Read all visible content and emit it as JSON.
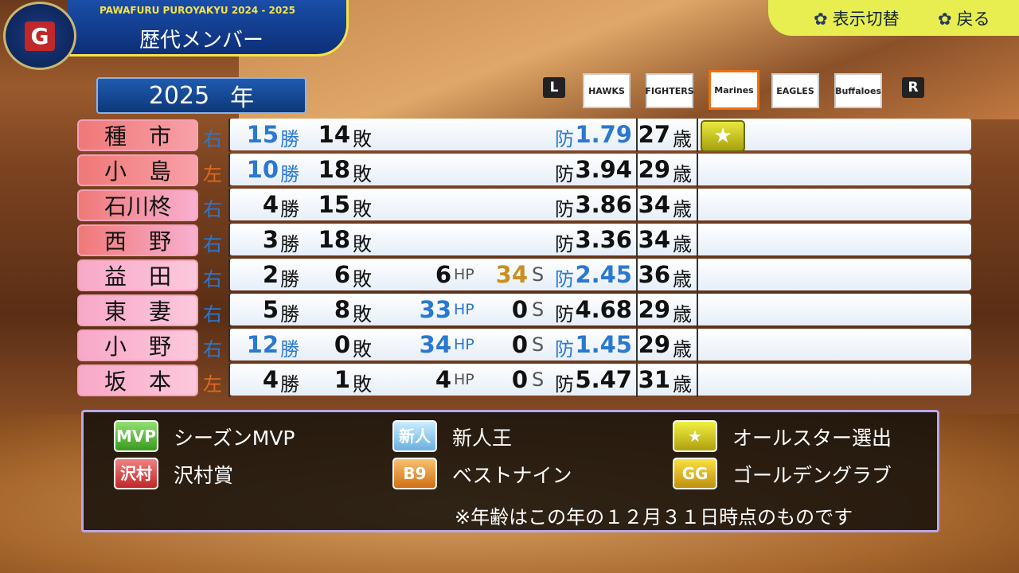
{
  "header": {
    "subtitle": "PAWAFURU PUROYAKYU 2024 - 2025",
    "title": "歴代メンバー",
    "logo": "G"
  },
  "top_buttons": [
    "表示切替",
    "戻る"
  ],
  "year": {
    "value": "2025",
    "unit": "年"
  },
  "team_nav": {
    "left": "L",
    "right": "R",
    "selected": 2,
    "teams": [
      "HAWKS",
      "FIGHTERS",
      "Marines",
      "EAGLES",
      "Buffaloes"
    ]
  },
  "units": {
    "wins": "勝",
    "losses": "敗",
    "hp": "HP",
    "saves": "S",
    "era": "防",
    "age": "歳"
  },
  "rows": [
    {
      "name": "種　市",
      "hand": "右",
      "wins": "15",
      "losses": "14",
      "hp": null,
      "saves": null,
      "era": "1.79",
      "age": "27",
      "all_star": true,
      "blue": [
        "wins",
        "era"
      ]
    },
    {
      "name": "小　島",
      "hand": "左",
      "wins": "10",
      "losses": "18",
      "hp": null,
      "saves": null,
      "era": "3.94",
      "age": "29",
      "all_star": false,
      "blue": [
        "wins"
      ]
    },
    {
      "name": "石川柊",
      "hand": "右",
      "wins": "4",
      "losses": "15",
      "hp": null,
      "saves": null,
      "era": "3.86",
      "age": "34",
      "all_star": false,
      "blue": []
    },
    {
      "name": "西　野",
      "hand": "右",
      "wins": "3",
      "losses": "18",
      "hp": null,
      "saves": null,
      "era": "3.36",
      "age": "34",
      "all_star": false,
      "blue": []
    },
    {
      "name": "益　田",
      "hand": "右",
      "wins": "2",
      "losses": "6",
      "hp": "6",
      "saves": "34",
      "era": "2.45",
      "age": "36",
      "all_star": false,
      "blue": [
        "era"
      ]
    },
    {
      "name": "東　妻",
      "hand": "右",
      "wins": "5",
      "losses": "8",
      "hp": "33",
      "saves": "0",
      "era": "4.68",
      "age": "29",
      "all_star": false,
      "blue": [
        "hp"
      ]
    },
    {
      "name": "小　野",
      "hand": "右",
      "wins": "12",
      "losses": "0",
      "hp": "34",
      "saves": "0",
      "era": "1.45",
      "age": "29",
      "all_star": false,
      "blue": [
        "wins",
        "hp",
        "era"
      ]
    },
    {
      "name": "坂　本",
      "hand": "左",
      "wins": "4",
      "losses": "1",
      "hp": "4",
      "saves": "0",
      "era": "5.47",
      "age": "31",
      "all_star": false,
      "blue": []
    }
  ],
  "legend": {
    "items": [
      {
        "badge": "MVP",
        "label": "シーズンMVP"
      },
      {
        "badge": "新人",
        "label": "新人王"
      },
      {
        "badge": "★",
        "label": "オールスター選出"
      },
      {
        "badge": "沢村",
        "label": "沢村賞"
      },
      {
        "badge": "B9",
        "label": "ベストナイン"
      },
      {
        "badge": "GG",
        "label": "ゴールデングラブ"
      }
    ],
    "note": "※年齢はこの年の１２月３１日時点のものです"
  }
}
